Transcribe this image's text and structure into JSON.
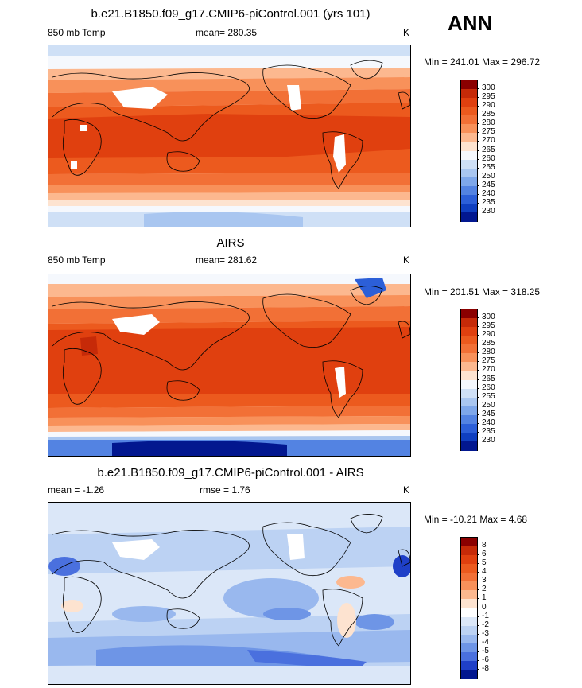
{
  "season": "ANN",
  "panels": [
    {
      "title": "b.e21.B1850.f09_g17.CMIP6-piControl.001 (yrs 101)",
      "left_label": "850 mb Temp",
      "center_label": "mean= 280.35",
      "units": "K",
      "minmax": "Min = 241.01 Max = 296.72",
      "levels": [
        "300",
        "295",
        "290",
        "285",
        "280",
        "275",
        "270",
        "265",
        "260",
        "255",
        "250",
        "245",
        "240",
        "235",
        "230"
      ]
    },
    {
      "title": "AIRS",
      "left_label": "850 mb Temp",
      "center_label": "mean= 281.62",
      "units": "K",
      "minmax": "Min = 201.51 Max = 318.25",
      "levels": [
        "300",
        "295",
        "290",
        "285",
        "280",
        "275",
        "270",
        "265",
        "260",
        "255",
        "250",
        "245",
        "240",
        "235",
        "230"
      ]
    },
    {
      "title": "b.e21.B1850.f09_g17.CMIP6-piControl.001 - AIRS",
      "left_label": "mean =  -1.26",
      "center_label": "rmse =   1.76",
      "units": "K",
      "minmax": "Min = -10.21 Max =   4.68",
      "levels": [
        "8",
        "6",
        "5",
        "4",
        "3",
        "2",
        "1",
        "0",
        "-1",
        "-2",
        "-3",
        "-4",
        "-5",
        "-6",
        "-8"
      ]
    }
  ],
  "colors": {
    "abs_scale": [
      "#8b0000",
      "#c62a08",
      "#e0400f",
      "#ec5a1e",
      "#f27036",
      "#f8915a",
      "#fcb88f",
      "#fde3d0",
      "#f5f8fd",
      "#cfe0f6",
      "#a9c6f0",
      "#7ea7ea",
      "#5383e2",
      "#2c5fd8",
      "#0f3fc0",
      "#02178f"
    ],
    "diff_scale": [
      "#8b0000",
      "#c62a08",
      "#e0400f",
      "#ec5a1e",
      "#f27036",
      "#f8915a",
      "#fcb88f",
      "#fde3d0",
      "#ffffff",
      "#dbe7f8",
      "#bcd2f3",
      "#99b8ee",
      "#6e95e6",
      "#4a70de",
      "#1f40c8",
      "#02178f"
    ]
  }
}
